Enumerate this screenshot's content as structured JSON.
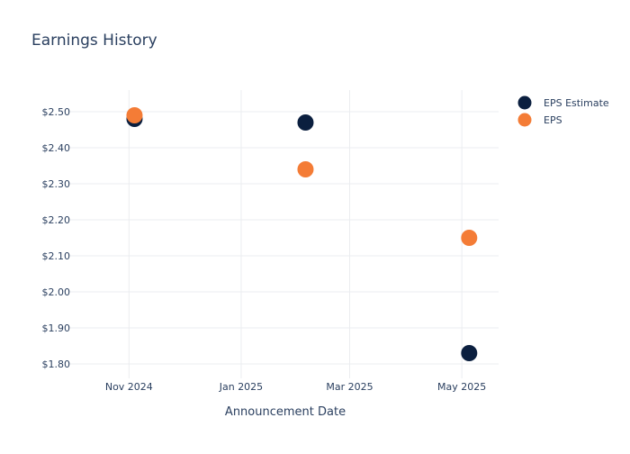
{
  "chart_data": {
    "type": "scatter",
    "title": "Earnings History",
    "xlabel": "Announcement Date",
    "ylabel": "",
    "x_ticks": [
      {
        "date": "2024-11-01",
        "label": "Nov 2024"
      },
      {
        "date": "2025-01-01",
        "label": "Jan 2025"
      },
      {
        "date": "2025-03-01",
        "label": "Mar 2025"
      },
      {
        "date": "2025-05-01",
        "label": "May 2025"
      }
    ],
    "y_ticks": [
      1.8,
      1.9,
      2.0,
      2.1,
      2.2,
      2.3,
      2.4,
      2.5
    ],
    "y_tick_prefix": "$",
    "xlim": [
      "2024-10-01",
      "2025-05-21"
    ],
    "ylim": [
      1.76,
      2.56
    ],
    "grid": true,
    "legend_position": "top-right",
    "series": [
      {
        "name": "EPS Estimate",
        "color": "#0b1f3f",
        "points": [
          {
            "x": "2024-11-04",
            "y": 2.48
          },
          {
            "x": "2025-02-05",
            "y": 2.47
          },
          {
            "x": "2025-05-05",
            "y": 1.83
          }
        ]
      },
      {
        "name": "EPS",
        "color": "#f47c36",
        "points": [
          {
            "x": "2024-11-04",
            "y": 2.49
          },
          {
            "x": "2025-02-05",
            "y": 2.34
          },
          {
            "x": "2025-05-05",
            "y": 2.15
          }
        ]
      }
    ]
  }
}
